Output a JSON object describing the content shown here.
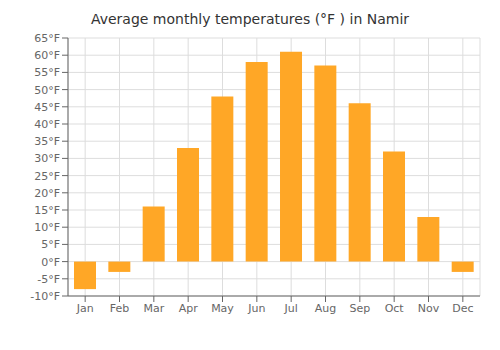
{
  "chart_data": {
    "type": "bar",
    "title": "Average monthly temperatures (°F ) in Namir",
    "categories": [
      "Jan",
      "Feb",
      "Mar",
      "Apr",
      "May",
      "Jun",
      "Jul",
      "Aug",
      "Sep",
      "Oct",
      "Nov",
      "Dec"
    ],
    "values": [
      -8,
      -3,
      16,
      33,
      48,
      58,
      61,
      57,
      46,
      32,
      13,
      -3
    ],
    "color": "#FFA726",
    "ylim": [
      -10,
      65
    ],
    "yticks": [
      {
        "value": -10,
        "label": "-10°F"
      },
      {
        "value": -5,
        "label": "-5°F"
      },
      {
        "value": 0,
        "label": "0°F"
      },
      {
        "value": 5,
        "label": "5°F"
      },
      {
        "value": 10,
        "label": "10°F"
      },
      {
        "value": 15,
        "label": "15°F"
      },
      {
        "value": 20,
        "label": "20°F"
      },
      {
        "value": 25,
        "label": "25°F"
      },
      {
        "value": 30,
        "label": "30°F"
      },
      {
        "value": 35,
        "label": "35°F"
      },
      {
        "value": 40,
        "label": "40°F"
      },
      {
        "value": 45,
        "label": "45°F"
      },
      {
        "value": 50,
        "label": "50°F"
      },
      {
        "value": 55,
        "label": "55°F"
      },
      {
        "value": 60,
        "label": "60°F"
      },
      {
        "value": 65,
        "label": "65°F"
      }
    ],
    "grid": true
  }
}
